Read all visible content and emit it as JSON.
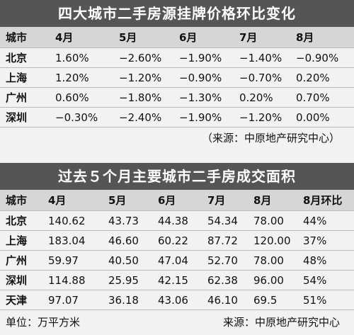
{
  "table1": {
    "title": "四大城市二手房源挂牌价格环比变化",
    "header": [
      "城市",
      "4月",
      "5月",
      "6月",
      "7月",
      "8月"
    ],
    "rows": [
      [
        "北京",
        "1.60%",
        "−2.60%",
        "−1.90%",
        "−1.40%",
        "−0.90%"
      ],
      [
        "上海",
        "1.20%",
        "−1.20%",
        "−0.90%",
        "−0.70%",
        "0.20%"
      ],
      [
        "广州",
        "0.60%",
        "−1.80%",
        "−1.30%",
        "0.20%",
        "0.70%"
      ],
      [
        "深圳",
        "−0.30%",
        "−2.40%",
        "−1.90%",
        "−1.20%",
        "0.00%"
      ]
    ],
    "source": "（来源：中原地产研究中心）"
  },
  "table2": {
    "title": "过去５个月主要城市二手房成交面积",
    "header": [
      "城市",
      "4月",
      "5月",
      "6月",
      "7月",
      "8月",
      "8月环比"
    ],
    "rows": [
      [
        "北京",
        "140.62",
        "43.73",
        "44.38",
        "54.34",
        "78.00",
        "44%"
      ],
      [
        "上海",
        "183.04",
        "46.60",
        "60.22",
        "87.72",
        "120.00",
        "37%"
      ],
      [
        "广州",
        "59.97",
        "40.50",
        "47.04",
        "52.70",
        "78.00",
        "48%"
      ],
      [
        "深圳",
        "114.88",
        "25.95",
        "42.15",
        "62.38",
        "96.00",
        "54%"
      ],
      [
        "天津",
        "97.07",
        "36.18",
        "43.06",
        "46.10",
        "69.5",
        "51%"
      ]
    ],
    "unit": "单位：万平方米",
    "source": "来源：中原地产研究中心"
  }
}
